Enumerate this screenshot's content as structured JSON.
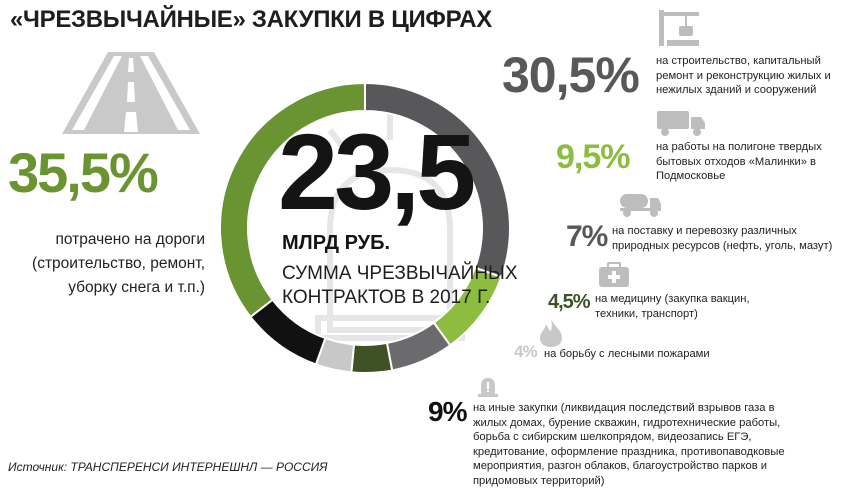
{
  "title": "«ЧРЕЗВЫЧАЙНЫЕ» ЗАКУПКИ В ЦИФРАХ",
  "center": {
    "value": "23,5",
    "unit": "МЛРД РУБ.",
    "caption": "СУММА ЧРЕЗВЫЧАЙНЫХ КОНТРАКТОВ В 2017 Г."
  },
  "icons": {
    "roads": "road-icon",
    "construction": "crane-icon",
    "waste": "garbage-truck-icon",
    "resources": "tank-truck-icon",
    "medicine": "first-aid-kit-icon",
    "fires": "flame-icon",
    "other": "warning-beacon-icon",
    "center_watermark": "siren-icon"
  },
  "colors": {
    "roads": "#6a9431",
    "construction": "#58585a",
    "waste": "#8cbd3f",
    "resources": "#6b6b6d",
    "medicine": "#3f5226",
    "fires": "#c8c8c8",
    "other": "#111111"
  },
  "source": "Источник: ТРАНСПЕРЕНСИ ИНТЕРНЕШНЛ — РОССИЯ",
  "chart_data": {
    "type": "pie",
    "title": "«ЧРЕЗВЫЧАЙНЫЕ» ЗАКУПКИ В ЦИФРАХ",
    "slices": [
      {
        "key": "construction",
        "value": 30.5,
        "label": "30,5%",
        "description": "на строительство, капитальный ремонт и реконструкцию жилых и нежилых зданий и сооружений"
      },
      {
        "key": "waste",
        "value": 9.5,
        "label": "9,5%",
        "description": "на работы на полигоне твердых бытовых отходов «Малинки» в Подмосковье"
      },
      {
        "key": "resources",
        "value": 7,
        "label": "7%",
        "description": "на поставку и перевозку различных природных ресурсов (нефть, уголь, мазут)"
      },
      {
        "key": "medicine",
        "value": 4.5,
        "label": "4,5%",
        "description": "на медицину (закупка вакцин, техники, транспорт)"
      },
      {
        "key": "fires",
        "value": 4,
        "label": "4%",
        "description": "на борьбу с лесными пожарами"
      },
      {
        "key": "other",
        "value": 9,
        "label": "9%",
        "description": "на иные закупки (ликвидация последствий взрывов газа в жилых домах, бурение скважин, гидротехнические работы, борьба с сибирским шелкопрядом, видеозапись ЕГЭ, кредитование, оформление праздника, противопаводковые мероприятия, разгон облаков, благоустройство парков и придомовых территорий)"
      },
      {
        "key": "roads",
        "value": 35.5,
        "label": "35,5%",
        "description": "потрачено на дороги (строительство, ремонт, уборку снега и т.п.)"
      }
    ]
  }
}
